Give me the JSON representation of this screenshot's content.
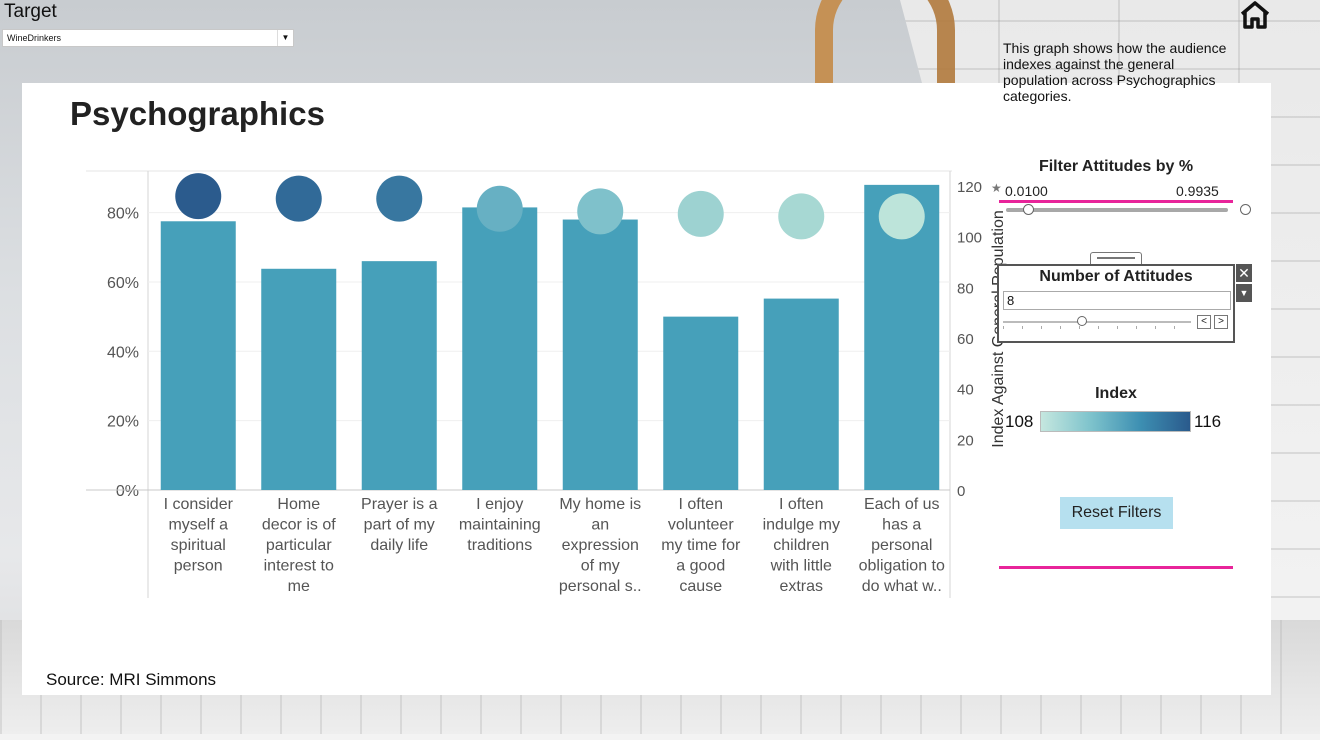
{
  "target": {
    "label": "Target",
    "selected": "WineDrinkers"
  },
  "page": {
    "title": "Psychographics",
    "source": "Source: MRI Simmons"
  },
  "description": "This graph shows how the audience indexes against the general population across Psychographics categories.",
  "filter_attitudes": {
    "title": "Filter Attitudes by %",
    "min": "0.0100",
    "max": "0.9935"
  },
  "number_of_attitudes": {
    "title": "Number of Attitudes",
    "value": "8"
  },
  "index_legend": {
    "title": "Index",
    "min": "108",
    "max": "116",
    "colors": [
      "#c5e7df",
      "#7ec3cc",
      "#3d8fb2",
      "#2a5a8c"
    ]
  },
  "reset_label": "Reset Filters",
  "chart_data": {
    "type": "bar",
    "categories": [
      [
        "I consider",
        "myself a",
        "spiritual",
        "person"
      ],
      [
        "Home",
        "decor is of",
        "particular",
        "interest to",
        "me"
      ],
      [
        "Prayer is a",
        "part of my",
        "daily life"
      ],
      [
        "I enjoy",
        "maintaining",
        "traditions"
      ],
      [
        "My home is",
        "an",
        "expression",
        "of my",
        "personal s.."
      ],
      [
        "I often",
        "volunteer",
        "my time for",
        "a good",
        "cause"
      ],
      [
        "I often",
        "indulge my",
        "children",
        "with little",
        "extras"
      ],
      [
        "Each of us",
        "has a",
        "personal",
        "obligation to",
        "do what w.."
      ]
    ],
    "values": [
      77.5,
      63.8,
      66.0,
      81.5,
      78.0,
      50.0,
      55.2,
      88.0
    ],
    "index_values": [
      116,
      115,
      115,
      111,
      110,
      109,
      108,
      108
    ],
    "circle_colors": [
      "#2b5b8d",
      "#316a98",
      "#3877a0",
      "#67b0c3",
      "#7fc1cb",
      "#9dd2d1",
      "#a7d8d3",
      "#bde4da"
    ],
    "bar_color": "#46a0ba",
    "ylim": [
      0,
      92
    ],
    "yticks": [
      "0%",
      "20%",
      "40%",
      "60%",
      "80%"
    ],
    "y2label": "Index Against General Population",
    "y2lim": [
      0,
      120
    ],
    "y2ticks": [
      "0",
      "20",
      "40",
      "60",
      "80",
      "100",
      "120"
    ]
  }
}
